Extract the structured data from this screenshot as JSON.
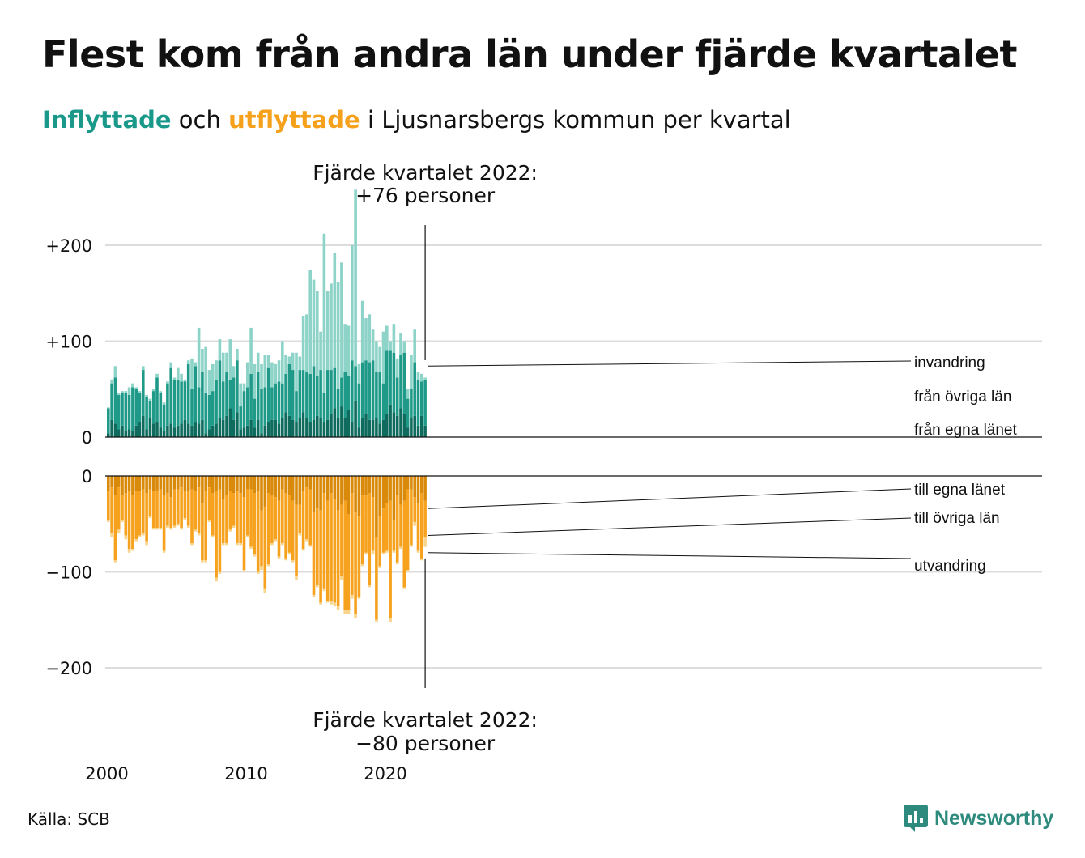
{
  "title": "Flest kom från andra län under fjärde kvartalet",
  "subtitle": {
    "in_word": "Inflyttade",
    "connector": "och",
    "out_word": "utflyttade",
    "rest": "i Ljusnarsbergs kommun per kvartal"
  },
  "source": "Källa: SCB",
  "logo": "Newsworthy",
  "colors": {
    "in_own": "#0e6b5e",
    "in_other": "#1f9a89",
    "in_imm": "#8dd3c8",
    "out_own": "#d98a0b",
    "out_other": "#f6a21f",
    "out_emig": "#f9d48b"
  },
  "annotations": {
    "top_line1": "Fjärde kvartalet 2022:",
    "top_line2": "+76 personer",
    "bottom_line1": "Fjärde kvartalet 2022:",
    "bottom_line2": "−80 personer"
  },
  "chart_data": {
    "type": "bar",
    "x_ticks": [
      "2000",
      "2010",
      "2020"
    ],
    "upper_ticks": [
      "0",
      "+100",
      "+200"
    ],
    "lower_ticks": [
      "0",
      "−100",
      "−200"
    ],
    "in_labels": [
      "invandring",
      "från övriga län",
      "från egna länet"
    ],
    "out_labels": [
      "till egna länet",
      "till övriga län",
      "utvandring"
    ],
    "upper_ylim": [
      0,
      222
    ],
    "lower_ylim": [
      -222,
      0
    ],
    "categories": [
      "2000Q1",
      "2000Q2",
      "2000Q3",
      "2000Q4",
      "2001Q1",
      "2001Q2",
      "2001Q3",
      "2001Q4",
      "2002Q1",
      "2002Q2",
      "2002Q3",
      "2002Q4",
      "2003Q1",
      "2003Q2",
      "2003Q3",
      "2003Q4",
      "2004Q1",
      "2004Q2",
      "2004Q3",
      "2004Q4",
      "2005Q1",
      "2005Q2",
      "2005Q3",
      "2005Q4",
      "2006Q1",
      "2006Q2",
      "2006Q3",
      "2006Q4",
      "2007Q1",
      "2007Q2",
      "2007Q3",
      "2007Q4",
      "2008Q1",
      "2008Q2",
      "2008Q3",
      "2008Q4",
      "2009Q1",
      "2009Q2",
      "2009Q3",
      "2009Q4",
      "2010Q1",
      "2010Q2",
      "2010Q3",
      "2010Q4",
      "2011Q1",
      "2011Q2",
      "2011Q3",
      "2011Q4",
      "2012Q1",
      "2012Q2",
      "2012Q3",
      "2012Q4",
      "2013Q1",
      "2013Q2",
      "2013Q3",
      "2013Q4",
      "2014Q1",
      "2014Q2",
      "2014Q3",
      "2014Q4",
      "2015Q1",
      "2015Q2",
      "2015Q3",
      "2015Q4",
      "2016Q1",
      "2016Q2",
      "2016Q3",
      "2016Q4",
      "2017Q1",
      "2017Q2",
      "2017Q3",
      "2017Q4",
      "2018Q1",
      "2018Q2",
      "2018Q3",
      "2018Q4",
      "2019Q1",
      "2019Q2",
      "2019Q3",
      "2019Q4",
      "2020Q1",
      "2020Q2",
      "2020Q3",
      "2020Q4",
      "2021Q1",
      "2021Q2",
      "2021Q3",
      "2021Q4",
      "2022Q1",
      "2022Q2",
      "2022Q3",
      "2022Q4"
    ],
    "in_series": [
      {
        "name": "från egna länet",
        "values": [
          4,
          18,
          14,
          8,
          12,
          6,
          8,
          6,
          12,
          16,
          22,
          8,
          20,
          14,
          16,
          10,
          6,
          12,
          14,
          10,
          12,
          14,
          18,
          14,
          12,
          16,
          14,
          18,
          4,
          8,
          12,
          14,
          20,
          18,
          22,
          30,
          18,
          26,
          8,
          10,
          12,
          18,
          10,
          18,
          4,
          12,
          16,
          18,
          18,
          14,
          20,
          26,
          22,
          18,
          16,
          20,
          26,
          20,
          16,
          18,
          22,
          20,
          16,
          18,
          24,
          30,
          20,
          32,
          20,
          28,
          16,
          38,
          10,
          20,
          24,
          18,
          18,
          20,
          14,
          18,
          24,
          34,
          26,
          22,
          30,
          24,
          10,
          20,
          22,
          12,
          22,
          12,
          18,
          20
        ]
      },
      {
        "name": "från övriga län",
        "values": [
          26,
          38,
          48,
          36,
          34,
          40,
          36,
          46,
          38,
          30,
          48,
          34,
          18,
          34,
          46,
          36,
          28,
          44,
          58,
          50,
          48,
          44,
          40,
          62,
          38,
          58,
          38,
          50,
          42,
          36,
          36,
          46,
          60,
          40,
          46,
          30,
          44,
          54,
          24,
          38,
          40,
          48,
          30,
          50,
          46,
          40,
          56,
          34,
          38,
          44,
          36,
          40,
          54,
          52,
          32,
          50,
          44,
          48,
          50,
          56,
          42,
          50,
          30,
          52,
          46,
          42,
          30,
          30,
          48,
          36,
          64,
          36,
          46,
          58,
          56,
          60,
          62,
          48,
          54,
          38,
          66,
          56,
          62,
          40,
          56,
          64,
          30,
          30,
          56,
          48,
          36,
          48,
          40,
          50
        ]
      },
      {
        "name": "invandring",
        "values": [
          1,
          4,
          12,
          2,
          2,
          2,
          8,
          4,
          2,
          2,
          4,
          2,
          2,
          2,
          4,
          2,
          2,
          2,
          6,
          2,
          12,
          8,
          2,
          4,
          32,
          4,
          62,
          24,
          48,
          26,
          28,
          20,
          22,
          30,
          20,
          42,
          12,
          12,
          24,
          8,
          26,
          48,
          36,
          20,
          26,
          34,
          14,
          26,
          20,
          22,
          44,
          20,
          8,
          18,
          40,
          14,
          56,
          60,
          108,
          90,
          88,
          40,
          166,
          82,
          90,
          120,
          112,
          120,
          50,
          52,
          120,
          184,
          20,
          64,
          44,
          50,
          32,
          32,
          26,
          54,
          26,
          10,
          30,
          20,
          22,
          12,
          10,
          36,
          34,
          8,
          8,
          2,
          4,
          6
        ]
      }
    ],
    "out_series": [
      {
        "name": "till egna länet",
        "values": [
          -16,
          -12,
          -20,
          -12,
          -20,
          -18,
          -16,
          -20,
          -16,
          -16,
          -14,
          -18,
          -14,
          -16,
          -16,
          -14,
          -20,
          -18,
          -22,
          -14,
          -14,
          -12,
          -16,
          -16,
          -14,
          -16,
          -12,
          -28,
          -16,
          -12,
          -18,
          -16,
          -14,
          -24,
          -20,
          -16,
          -18,
          -16,
          -18,
          -22,
          -14,
          -14,
          -18,
          -16,
          -36,
          -32,
          -18,
          -20,
          -22,
          -26,
          -14,
          -18,
          -20,
          -26,
          -30,
          -30,
          -16,
          -12,
          -14,
          -38,
          -34,
          -36,
          -18,
          -26,
          -18,
          -24,
          -36,
          -30,
          -26,
          -40,
          -18,
          -38,
          -42,
          -20,
          -20,
          -18,
          -22,
          -64,
          -42,
          -34,
          -28,
          -26,
          -46,
          -20,
          -30,
          -26,
          -14,
          -14,
          -22,
          -28,
          -18,
          -26,
          -32,
          -40
        ]
      },
      {
        "name": "till övriga län",
        "values": [
          -30,
          -48,
          -68,
          -44,
          -26,
          -44,
          -60,
          -56,
          -50,
          -46,
          -46,
          -50,
          -28,
          -38,
          -38,
          -40,
          -58,
          -34,
          -32,
          -38,
          -36,
          -42,
          -28,
          -36,
          -56,
          -40,
          -48,
          -60,
          -72,
          -34,
          -44,
          -90,
          -86,
          -46,
          -50,
          -40,
          -34,
          -54,
          -52,
          -76,
          -48,
          -60,
          -64,
          -84,
          -58,
          -86,
          -74,
          -50,
          -44,
          -58,
          -56,
          -68,
          -60,
          -62,
          -74,
          -30,
          -60,
          -54,
          -58,
          -86,
          -80,
          -96,
          -100,
          -104,
          -112,
          -108,
          -100,
          -74,
          -114,
          -100,
          -106,
          -106,
          -84,
          -72,
          -60,
          -96,
          -56,
          -86,
          -52,
          -46,
          -50,
          -122,
          -32,
          -70,
          -44,
          -90,
          -84,
          -58,
          -26,
          -50,
          -68,
          -38,
          -48,
          -32
        ]
      },
      {
        "name": "utvandring",
        "values": [
          -2,
          -4,
          -2,
          -4,
          -2,
          -4,
          -4,
          -2,
          -2,
          -2,
          -2,
          -4,
          -2,
          -2,
          -2,
          -2,
          -2,
          -2,
          -2,
          -2,
          -2,
          -2,
          -2,
          -2,
          -2,
          -2,
          -2,
          -2,
          -2,
          -2,
          -2,
          -4,
          -2,
          -2,
          -2,
          -2,
          -2,
          -2,
          -2,
          -2,
          -2,
          -2,
          -2,
          -2,
          -4,
          -4,
          -2,
          -2,
          -2,
          -2,
          -2,
          -2,
          -2,
          -2,
          -4,
          -2,
          -2,
          -2,
          -2,
          -2,
          -2,
          -2,
          -2,
          -2,
          -4,
          -4,
          -4,
          -4,
          -4,
          -4,
          -4,
          -4,
          -2,
          -2,
          -2,
          -2,
          -4,
          -2,
          -2,
          -2,
          -2,
          -4,
          -2,
          -2,
          -2,
          -2,
          -2,
          -2,
          -4,
          -2,
          -2,
          -10,
          -4,
          -8
        ]
      }
    ]
  }
}
